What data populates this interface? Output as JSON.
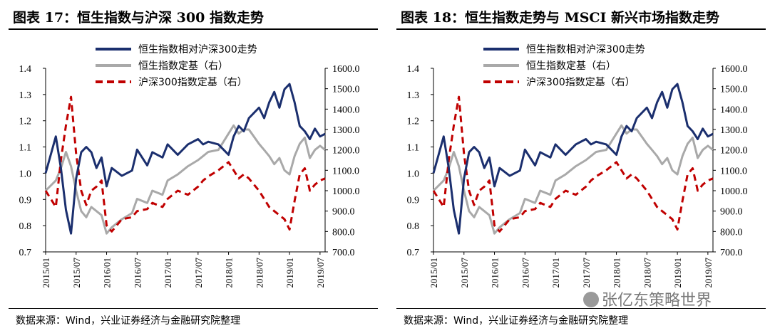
{
  "figures": [
    {
      "title": "图表 17：恒生指数与沪深 300 指数走势",
      "source": "数据来源：Wind，兴业证券经济与金融研究院整理"
    },
    {
      "title": "图表 18：恒生指数走势与 MSCI 新兴市场指数走势",
      "source": "数据来源：Wind，兴业证券经济与金融研究院整理"
    }
  ],
  "watermark": "张亿东策略世界",
  "colors": {
    "blue": "#1b2f6e",
    "gray": "#a9a9a9",
    "red": "#c00000"
  },
  "chart_data": [
    {
      "type": "line",
      "x_ticks": [
        "2015/01",
        "2015/07",
        "2016/01",
        "2016/07",
        "2017/01",
        "2017/07",
        "2018/01",
        "2018/07",
        "2019/01",
        "2019/07"
      ],
      "y_left": {
        "ylim": [
          0.7,
          1.4
        ],
        "ticks": [
          "0.7",
          "0.8",
          "0.9",
          "1.0",
          "1.1",
          "1.2",
          "1.3",
          "1.4"
        ]
      },
      "y_right": {
        "ylim": [
          700,
          1600
        ],
        "ticks": [
          "700.0",
          "800.0",
          "900.0",
          "1000.0",
          "1100.0",
          "1200.0",
          "1300.0",
          "1400.0",
          "1500.0",
          "1600.0"
        ]
      },
      "legend_position": "top-center",
      "series": [
        {
          "name": "恒生指数相对沪深300走势",
          "axis": "left",
          "style": "solid",
          "color": "blue",
          "x": [
            "2015/01",
            "2015/03",
            "2015/04",
            "2015/05",
            "2015/06",
            "2015/07",
            "2015/08",
            "2015/09",
            "2015/10",
            "2015/11",
            "2015/12",
            "2016/01",
            "2016/02",
            "2016/04",
            "2016/06",
            "2016/07",
            "2016/09",
            "2016/10",
            "2016/12",
            "2017/01",
            "2017/03",
            "2017/05",
            "2017/07",
            "2017/08",
            "2017/09",
            "2017/11",
            "2018/01",
            "2018/02",
            "2018/03",
            "2018/04",
            "2018/05",
            "2018/07",
            "2018/08",
            "2018/09",
            "2018/10",
            "2018/11",
            "2018/12",
            "2019/01",
            "2019/02",
            "2019/03",
            "2019/04",
            "2019/05",
            "2019/06",
            "2019/07",
            "2019/08"
          ],
          "values": [
            1.0,
            1.14,
            1.02,
            0.86,
            0.77,
            0.98,
            1.08,
            1.1,
            1.08,
            1.02,
            1.06,
            0.95,
            1.02,
            0.99,
            1.01,
            1.09,
            1.03,
            1.08,
            1.06,
            1.11,
            1.07,
            1.11,
            1.13,
            1.11,
            1.12,
            1.11,
            1.07,
            1.14,
            1.18,
            1.16,
            1.21,
            1.25,
            1.21,
            1.27,
            1.31,
            1.25,
            1.32,
            1.34,
            1.27,
            1.18,
            1.16,
            1.13,
            1.17,
            1.14,
            1.15
          ]
        },
        {
          "name": "恒生指数定基（右）",
          "axis": "right",
          "style": "solid",
          "color": "gray",
          "x": [
            "2015/01",
            "2015/03",
            "2015/04",
            "2015/05",
            "2015/06",
            "2015/07",
            "2015/08",
            "2015/09",
            "2015/10",
            "2015/11",
            "2015/12",
            "2016/01",
            "2016/02",
            "2016/04",
            "2016/06",
            "2016/07",
            "2016/09",
            "2016/10",
            "2016/12",
            "2017/01",
            "2017/03",
            "2017/05",
            "2017/07",
            "2017/08",
            "2017/09",
            "2017/11",
            "2018/01",
            "2018/02",
            "2018/03",
            "2018/04",
            "2018/05",
            "2018/07",
            "2018/08",
            "2018/09",
            "2018/10",
            "2018/11",
            "2018/12",
            "2019/01",
            "2019/02",
            "2019/03",
            "2019/04",
            "2019/05",
            "2019/06",
            "2019/07",
            "2019/08"
          ],
          "values": [
            1000,
            1050,
            1110,
            1190,
            1120,
            1000,
            900,
            870,
            920,
            900,
            880,
            790,
            820,
            860,
            890,
            960,
            940,
            1000,
            980,
            1050,
            1080,
            1120,
            1150,
            1170,
            1190,
            1200,
            1280,
            1320,
            1280,
            1300,
            1300,
            1230,
            1200,
            1170,
            1130,
            1160,
            1100,
            1080,
            1170,
            1230,
            1260,
            1160,
            1200,
            1220,
            1200
          ]
        },
        {
          "name": "沪深300指数定基（右）",
          "axis": "right",
          "style": "dashed",
          "color": "red",
          "x": [
            "2015/01",
            "2015/03",
            "2015/04",
            "2015/05",
            "2015/06",
            "2015/07",
            "2015/08",
            "2015/09",
            "2015/10",
            "2015/11",
            "2015/12",
            "2016/01",
            "2016/02",
            "2016/04",
            "2016/06",
            "2016/07",
            "2016/09",
            "2016/10",
            "2016/12",
            "2017/01",
            "2017/03",
            "2017/05",
            "2017/07",
            "2017/08",
            "2017/09",
            "2017/11",
            "2018/01",
            "2018/02",
            "2018/03",
            "2018/04",
            "2018/05",
            "2018/07",
            "2018/08",
            "2018/09",
            "2018/10",
            "2018/11",
            "2018/12",
            "2019/01",
            "2019/02",
            "2019/03",
            "2019/04",
            "2019/05",
            "2019/06",
            "2019/07",
            "2019/08"
          ],
          "values": [
            1000,
            920,
            1150,
            1320,
            1460,
            1180,
            1000,
            930,
            1000,
            1020,
            1050,
            830,
            800,
            860,
            870,
            900,
            910,
            940,
            920,
            960,
            1000,
            980,
            1020,
            1050,
            1070,
            1100,
            1140,
            1100,
            1060,
            1080,
            1060,
            1000,
            960,
            920,
            900,
            880,
            860,
            810,
            950,
            1080,
            1110,
            1000,
            1030,
            1050,
            1060
          ]
        }
      ]
    },
    {
      "type": "line",
      "x_ticks": [
        "2015/01",
        "2015/07",
        "2016/01",
        "2016/07",
        "2017/01",
        "2017/07",
        "2018/01",
        "2018/07",
        "2019/01",
        "2019/07"
      ],
      "y_left": {
        "ylim": [
          0.7,
          1.4
        ],
        "ticks": [
          "0.7",
          "0.8",
          "0.9",
          "1.0",
          "1.1",
          "1.2",
          "1.3",
          "1.4"
        ]
      },
      "y_right": {
        "ylim": [
          700,
          1600
        ],
        "ticks": [
          "700.0",
          "800.0",
          "900.0",
          "1000.0",
          "1100.0",
          "1200.0",
          "1300.0",
          "1400.0",
          "1500.0",
          "1600.0"
        ]
      },
      "legend_position": "top-center",
      "series": [
        {
          "name": "恒生指数相对沪深300走势",
          "axis": "left",
          "style": "solid",
          "color": "blue",
          "x": [
            "2015/01",
            "2015/03",
            "2015/04",
            "2015/05",
            "2015/06",
            "2015/07",
            "2015/08",
            "2015/09",
            "2015/10",
            "2015/11",
            "2015/12",
            "2016/01",
            "2016/02",
            "2016/04",
            "2016/06",
            "2016/07",
            "2016/09",
            "2016/10",
            "2016/12",
            "2017/01",
            "2017/03",
            "2017/05",
            "2017/07",
            "2017/08",
            "2017/09",
            "2017/11",
            "2018/01",
            "2018/02",
            "2018/03",
            "2018/04",
            "2018/05",
            "2018/07",
            "2018/08",
            "2018/09",
            "2018/10",
            "2018/11",
            "2018/12",
            "2019/01",
            "2019/02",
            "2019/03",
            "2019/04",
            "2019/05",
            "2019/06",
            "2019/07",
            "2019/08"
          ],
          "values": [
            1.0,
            1.14,
            1.02,
            0.86,
            0.77,
            0.98,
            1.08,
            1.1,
            1.08,
            1.02,
            1.06,
            0.95,
            1.02,
            0.99,
            1.01,
            1.09,
            1.03,
            1.08,
            1.06,
            1.11,
            1.07,
            1.11,
            1.13,
            1.11,
            1.12,
            1.11,
            1.07,
            1.14,
            1.18,
            1.16,
            1.21,
            1.25,
            1.21,
            1.27,
            1.31,
            1.25,
            1.32,
            1.34,
            1.27,
            1.18,
            1.16,
            1.13,
            1.17,
            1.14,
            1.15
          ]
        },
        {
          "name": "恒生指数定基（右）",
          "axis": "right",
          "style": "solid",
          "color": "gray",
          "x": [
            "2015/01",
            "2015/03",
            "2015/04",
            "2015/05",
            "2015/06",
            "2015/07",
            "2015/08",
            "2015/09",
            "2015/10",
            "2015/11",
            "2015/12",
            "2016/01",
            "2016/02",
            "2016/04",
            "2016/06",
            "2016/07",
            "2016/09",
            "2016/10",
            "2016/12",
            "2017/01",
            "2017/03",
            "2017/05",
            "2017/07",
            "2017/08",
            "2017/09",
            "2017/11",
            "2018/01",
            "2018/02",
            "2018/03",
            "2018/04",
            "2018/05",
            "2018/07",
            "2018/08",
            "2018/09",
            "2018/10",
            "2018/11",
            "2018/12",
            "2019/01",
            "2019/02",
            "2019/03",
            "2019/04",
            "2019/05",
            "2019/06",
            "2019/07",
            "2019/08"
          ],
          "values": [
            1000,
            1050,
            1110,
            1190,
            1120,
            1000,
            900,
            870,
            920,
            900,
            880,
            790,
            820,
            860,
            890,
            960,
            940,
            1000,
            980,
            1050,
            1080,
            1120,
            1150,
            1170,
            1190,
            1200,
            1280,
            1320,
            1280,
            1300,
            1300,
            1230,
            1200,
            1170,
            1130,
            1160,
            1100,
            1080,
            1170,
            1230,
            1260,
            1160,
            1200,
            1220,
            1200
          ]
        },
        {
          "name": "沪深300指数定基（右）",
          "axis": "right",
          "style": "dashed",
          "color": "red",
          "x": [
            "2015/01",
            "2015/03",
            "2015/04",
            "2015/05",
            "2015/06",
            "2015/07",
            "2015/08",
            "2015/09",
            "2015/10",
            "2015/11",
            "2015/12",
            "2016/01",
            "2016/02",
            "2016/04",
            "2016/06",
            "2016/07",
            "2016/09",
            "2016/10",
            "2016/12",
            "2017/01",
            "2017/03",
            "2017/05",
            "2017/07",
            "2017/08",
            "2017/09",
            "2017/11",
            "2018/01",
            "2018/02",
            "2018/03",
            "2018/04",
            "2018/05",
            "2018/07",
            "2018/08",
            "2018/09",
            "2018/10",
            "2018/11",
            "2018/12",
            "2019/01",
            "2019/02",
            "2019/03",
            "2019/04",
            "2019/05",
            "2019/06",
            "2019/07",
            "2019/08"
          ],
          "values": [
            1000,
            920,
            1150,
            1320,
            1460,
            1180,
            1000,
            930,
            1000,
            1020,
            1050,
            830,
            800,
            860,
            870,
            900,
            910,
            940,
            920,
            960,
            1000,
            980,
            1020,
            1050,
            1070,
            1100,
            1140,
            1100,
            1060,
            1080,
            1060,
            1000,
            960,
            920,
            900,
            880,
            860,
            810,
            950,
            1080,
            1110,
            1000,
            1030,
            1050,
            1060
          ]
        }
      ]
    }
  ]
}
